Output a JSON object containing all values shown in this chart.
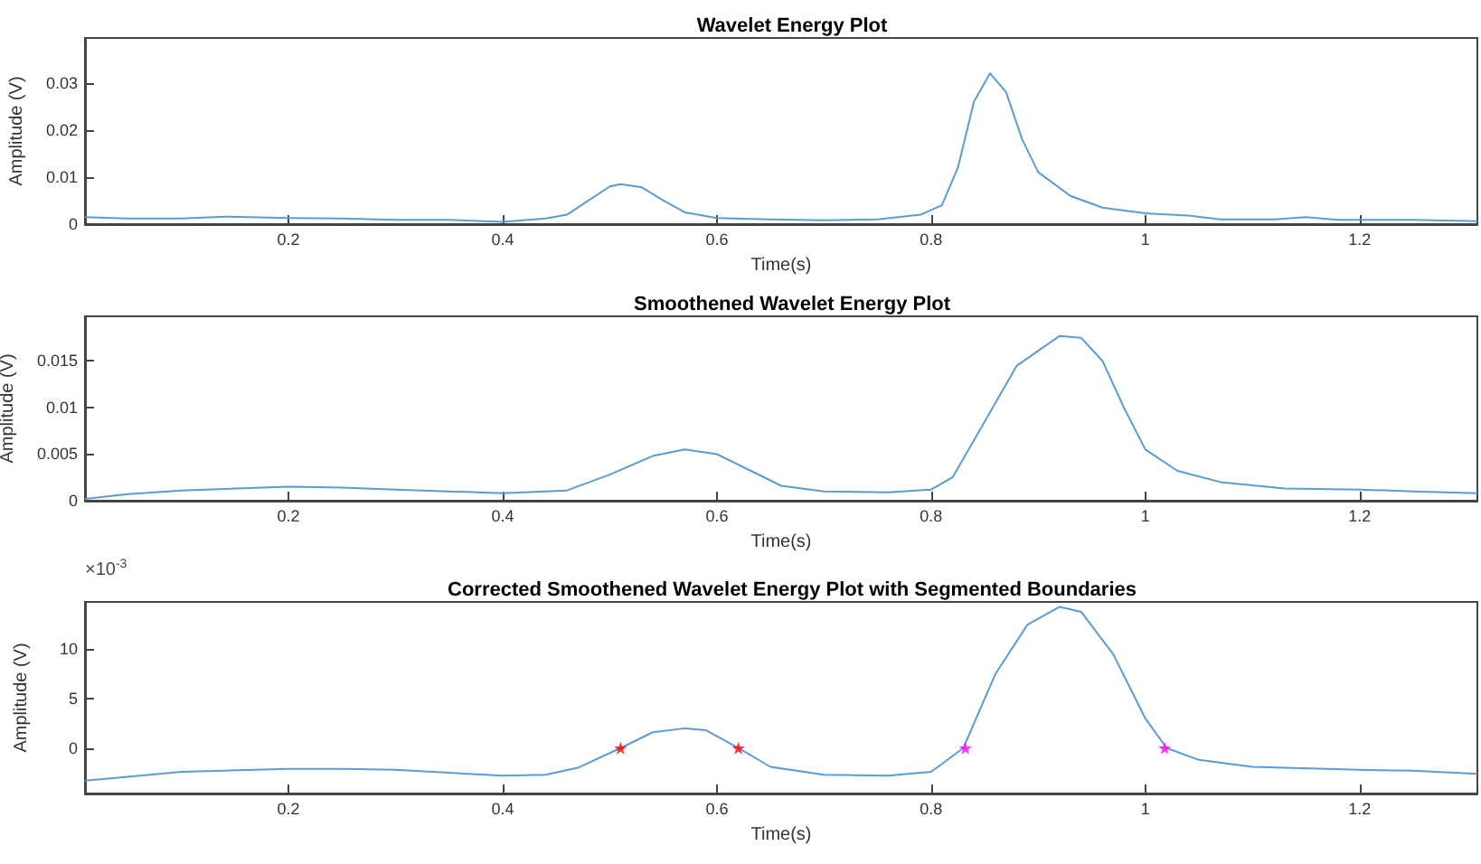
{
  "chart_data": [
    {
      "type": "line",
      "title": "Wavelet Energy Plot",
      "xlabel": "Time(s)",
      "ylabel": "Amplitude (V)",
      "xlim": [
        0.01,
        1.31
      ],
      "xticks": [
        0.2,
        0.4,
        0.6,
        0.8,
        1,
        1.2
      ],
      "ylim": [
        0,
        0.0395
      ],
      "yticks": [
        0,
        0.01,
        0.02,
        0.03
      ],
      "series": [
        {
          "color": "#5b9bd5",
          "x": [
            0.01,
            0.05,
            0.1,
            0.14,
            0.2,
            0.25,
            0.3,
            0.35,
            0.4,
            0.44,
            0.46,
            0.48,
            0.5,
            0.51,
            0.53,
            0.55,
            0.57,
            0.6,
            0.65,
            0.7,
            0.75,
            0.79,
            0.81,
            0.825,
            0.84,
            0.855,
            0.87,
            0.885,
            0.9,
            0.93,
            0.96,
            1.0,
            1.04,
            1.07,
            1.12,
            1.15,
            1.18,
            1.25,
            1.31
          ],
          "values": [
            0.0015,
            0.0012,
            0.0012,
            0.0016,
            0.0013,
            0.0012,
            0.0009,
            0.0009,
            0.0005,
            0.0012,
            0.002,
            0.005,
            0.008,
            0.0085,
            0.0078,
            0.005,
            0.0025,
            0.0013,
            0.001,
            0.0008,
            0.001,
            0.002,
            0.004,
            0.012,
            0.026,
            0.032,
            0.028,
            0.018,
            0.011,
            0.006,
            0.0035,
            0.0023,
            0.0018,
            0.001,
            0.001,
            0.0015,
            0.0009,
            0.0009,
            0.0006
          ]
        }
      ]
    },
    {
      "type": "line",
      "title": "Smoothened Wavelet Energy Plot",
      "xlabel": "Time(s)",
      "ylabel": "Amplitude (V)",
      "xlim": [
        0.01,
        1.31
      ],
      "xticks": [
        0.2,
        0.4,
        0.6,
        0.8,
        1,
        1.2
      ],
      "ylim": [
        0,
        0.0198
      ],
      "yticks": [
        0,
        0.005,
        0.01,
        0.015
      ],
      "series": [
        {
          "color": "#5b9bd5",
          "x": [
            0.01,
            0.05,
            0.1,
            0.2,
            0.25,
            0.3,
            0.4,
            0.46,
            0.5,
            0.54,
            0.57,
            0.6,
            0.63,
            0.66,
            0.7,
            0.76,
            0.8,
            0.82,
            0.85,
            0.88,
            0.92,
            0.94,
            0.96,
            0.98,
            1.0,
            1.03,
            1.07,
            1.13,
            1.2,
            1.25,
            1.31
          ],
          "values": [
            0.0002,
            0.0007,
            0.0011,
            0.0015,
            0.0014,
            0.0012,
            0.0008,
            0.0011,
            0.0028,
            0.0048,
            0.0055,
            0.005,
            0.0033,
            0.0016,
            0.001,
            0.0009,
            0.0012,
            0.0025,
            0.0085,
            0.0145,
            0.0177,
            0.0175,
            0.015,
            0.01,
            0.0055,
            0.0032,
            0.002,
            0.0013,
            0.0012,
            0.001,
            0.0008
          ]
        }
      ]
    },
    {
      "type": "line",
      "title": "Corrected Smoothened Wavelet Energy Plot with Segmented Boundaries",
      "xlabel": "Time(s)",
      "ylabel": "Amplitude (V)",
      "annotations": [
        "×10$^{-3}$"
      ],
      "xlim": [
        0.01,
        1.31
      ],
      "xticks": [
        0.2,
        0.4,
        0.6,
        0.8,
        1,
        1.2
      ],
      "ylim": [
        -4.6,
        14.8
      ],
      "yticks": [
        0,
        5,
        10
      ],
      "series": [
        {
          "color": "#5b9bd5",
          "x": [
            0.01,
            0.05,
            0.1,
            0.2,
            0.25,
            0.3,
            0.4,
            0.44,
            0.47,
            0.51,
            0.54,
            0.57,
            0.59,
            0.62,
            0.65,
            0.7,
            0.76,
            0.8,
            0.83,
            0.86,
            0.89,
            0.92,
            0.94,
            0.97,
            1.0,
            1.02,
            1.05,
            1.1,
            1.2,
            1.25,
            1.31
          ],
          "values": [
            -3.3,
            -2.9,
            -2.4,
            -2.1,
            -2.1,
            -2.2,
            -2.8,
            -2.7,
            -2.0,
            0,
            1.6,
            2.0,
            1.8,
            0,
            -1.9,
            -2.7,
            -2.8,
            -2.4,
            0,
            7.5,
            12.5,
            14.3,
            13.8,
            9.5,
            3.0,
            0,
            -1.2,
            -1.9,
            -2.2,
            -2.3,
            -2.6
          ]
        },
        {
          "type": "scatter",
          "marker": "star",
          "color": "#ff0000",
          "x": [
            0.51,
            0.62
          ],
          "values": [
            0,
            0
          ]
        },
        {
          "type": "scatter",
          "marker": "star",
          "color": "#ff00ff",
          "x": [
            0.832,
            1.018
          ],
          "values": [
            0,
            0
          ]
        }
      ]
    }
  ]
}
